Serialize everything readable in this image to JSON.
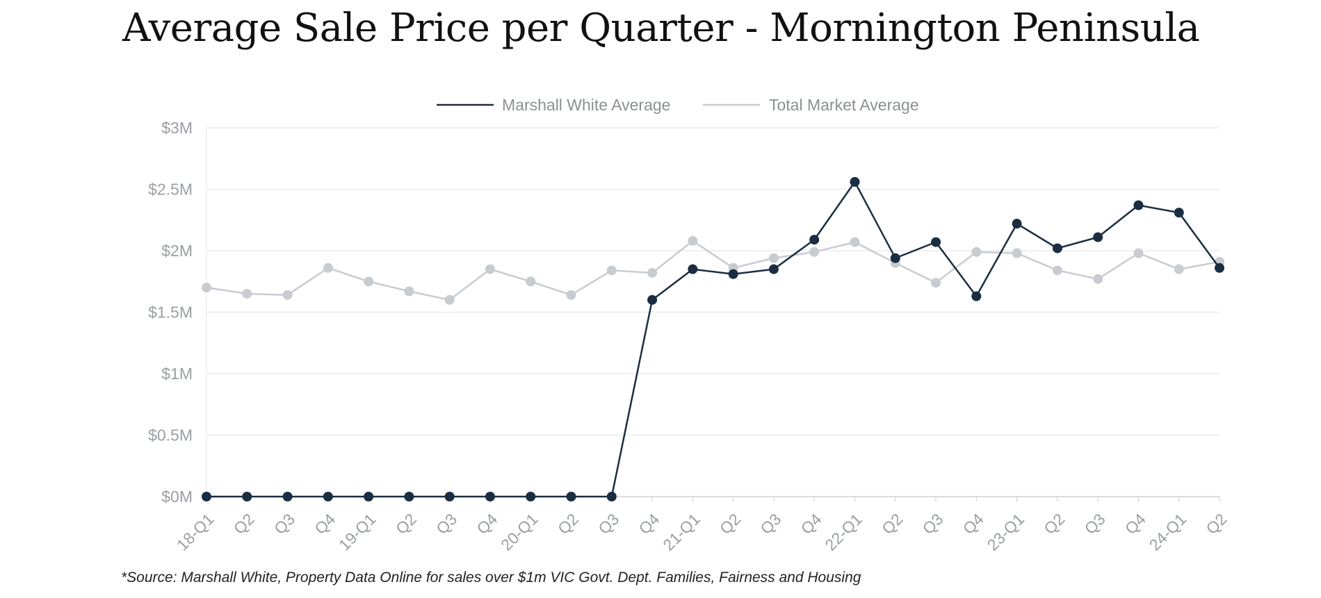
{
  "chart_data": {
    "type": "line",
    "title": "Average Sale Price per Quarter - Mornington Peninsula",
    "xlabel": "",
    "ylabel": "",
    "ylim": [
      0,
      3000000
    ],
    "yticks": [
      {
        "value": 0,
        "label": "$0M"
      },
      {
        "value": 500000,
        "label": "$0.5M"
      },
      {
        "value": 1000000,
        "label": "$1M"
      },
      {
        "value": 1500000,
        "label": "$1.5M"
      },
      {
        "value": 2000000,
        "label": "$2M"
      },
      {
        "value": 2500000,
        "label": "$2.5M"
      },
      {
        "value": 3000000,
        "label": "$3M"
      }
    ],
    "categories": [
      "18-Q1",
      "Q2",
      "Q3",
      "Q4",
      "19-Q1",
      "Q2",
      "Q3",
      "Q4",
      "20-Q1",
      "Q2",
      "Q3",
      "Q4",
      "21-Q1",
      "Q2",
      "Q3",
      "Q4",
      "22-Q1",
      "Q2",
      "Q3",
      "Q4",
      "23-Q1",
      "Q2",
      "Q3",
      "Q4",
      "24-Q1",
      "Q2"
    ],
    "grid": true,
    "legend_position": "top-center",
    "series": [
      {
        "name": "Marshall White Average",
        "color": "#1b2d42",
        "values": [
          0,
          0,
          0,
          0,
          0,
          0,
          0,
          0,
          0,
          0,
          0,
          1600000,
          1850000,
          1810000,
          1850000,
          2090000,
          2560000,
          1940000,
          2070000,
          1630000,
          2220000,
          2020000,
          2110000,
          2370000,
          2310000,
          1860000
        ]
      },
      {
        "name": "Total Market Average",
        "color": "#c8cbd0",
        "values": [
          1700000,
          1650000,
          1640000,
          1860000,
          1750000,
          1670000,
          1600000,
          1850000,
          1750000,
          1640000,
          1840000,
          1820000,
          2080000,
          1860000,
          1940000,
          1990000,
          2070000,
          1900000,
          1740000,
          1990000,
          1980000,
          1840000,
          1770000,
          1980000,
          1850000,
          1910000
        ]
      }
    ],
    "footnote": "*Source: Marshall White, Property Data Online for sales over $1m VIC Govt. Dept. Families, Fairness and Housing"
  }
}
